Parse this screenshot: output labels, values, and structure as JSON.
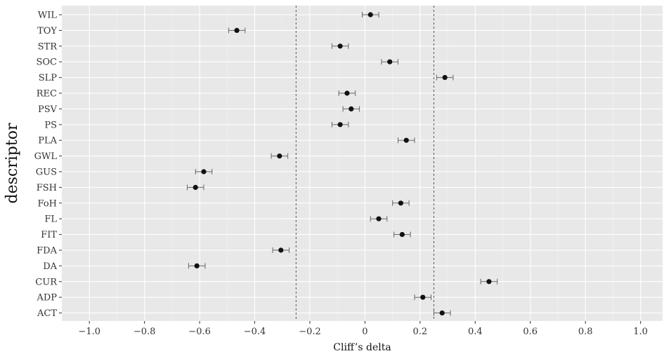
{
  "chart_data": {
    "type": "scatter",
    "xlabel": "Cliff’s delta",
    "ylabel": "descriptor",
    "xlim": [
      -1.1,
      1.08
    ],
    "xticks": [
      "−1.0",
      "−0.8",
      "−0.6",
      "−0.4",
      "−0.2",
      "0",
      "0.2",
      "0.4",
      "0.6",
      "0.8",
      "1.0"
    ],
    "xtick_values": [
      -1.0,
      -0.8,
      -0.6,
      -0.4,
      -0.2,
      0,
      0.2,
      0.4,
      0.6,
      0.8,
      1.0
    ],
    "reference_lines_x": [
      -0.25,
      0.25
    ],
    "grid": true,
    "categories": [
      "WIL",
      "TOY",
      "STR",
      "SOC",
      "SLP",
      "REC",
      "PSV",
      "PS",
      "PLA",
      "GWL",
      "GUS",
      "FSH",
      "FoH",
      "FL",
      "FIT",
      "FDA",
      "DA",
      "CUR",
      "ADP",
      "ACT"
    ],
    "values": [
      0.02,
      -0.465,
      -0.09,
      0.09,
      0.29,
      -0.065,
      -0.05,
      -0.09,
      0.15,
      -0.31,
      -0.585,
      -0.615,
      0.13,
      0.05,
      0.135,
      -0.305,
      -0.61,
      0.45,
      0.21,
      0.28
    ],
    "ci_lower": [
      -0.01,
      -0.495,
      -0.12,
      0.06,
      0.26,
      -0.095,
      -0.08,
      -0.12,
      0.12,
      -0.34,
      -0.615,
      -0.645,
      0.1,
      0.02,
      0.105,
      -0.335,
      -0.64,
      0.42,
      0.18,
      0.25
    ],
    "ci_upper": [
      0.05,
      -0.435,
      -0.06,
      0.12,
      0.32,
      -0.035,
      -0.02,
      -0.06,
      0.18,
      -0.28,
      -0.555,
      -0.585,
      0.16,
      0.08,
      0.165,
      -0.275,
      -0.58,
      0.48,
      0.24,
      0.31
    ],
    "colors": {
      "panel": "#e8e8e8",
      "grid_major": "#ffffff",
      "grid_minor": "#f2f2f2",
      "point": "#111111",
      "errorbar": "#666666",
      "refline": "#555555"
    }
  }
}
